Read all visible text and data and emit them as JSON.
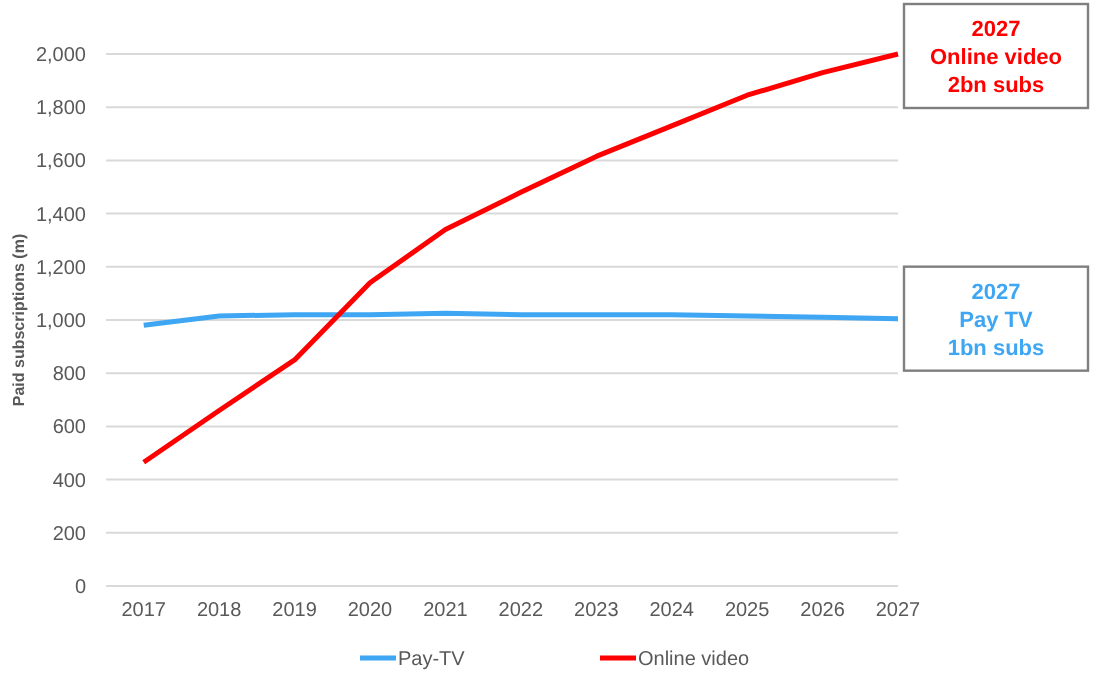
{
  "chart_data": {
    "type": "line",
    "ylabel": "Paid subscriptions (m)",
    "categories": [
      "2017",
      "2018",
      "2019",
      "2020",
      "2021",
      "2022",
      "2023",
      "2024",
      "2025",
      "2026",
      "2027"
    ],
    "series": [
      {
        "name": "Pay-TV",
        "color": "#3ea6f2",
        "values": [
          980,
          1015,
          1020,
          1020,
          1025,
          1020,
          1020,
          1020,
          1015,
          1010,
          1005
        ]
      },
      {
        "name": "Online video",
        "color": "#ff0000",
        "values": [
          465,
          660,
          850,
          1140,
          1340,
          1480,
          1615,
          1730,
          1845,
          1930,
          2000
        ]
      }
    ],
    "ylim": [
      0,
      2000
    ],
    "yticks": [
      {
        "value": 0,
        "label": "0"
      },
      {
        "value": 200,
        "label": "200"
      },
      {
        "value": 400,
        "label": "400"
      },
      {
        "value": 600,
        "label": "600"
      },
      {
        "value": 800,
        "label": "800"
      },
      {
        "value": 1000,
        "label": "1,000"
      },
      {
        "value": 1200,
        "label": "1,200"
      },
      {
        "value": 1400,
        "label": "1,400"
      },
      {
        "value": 1600,
        "label": "1,600"
      },
      {
        "value": 1800,
        "label": "1,800"
      },
      {
        "value": 2000,
        "label": "2,000"
      }
    ],
    "grid": "y",
    "legend": "bottom",
    "marker": "none",
    "line_style": "solid",
    "annotations": [
      {
        "text": "2027\nOnline video\n2bn subs",
        "x": "2027",
        "y": 2000
      },
      {
        "text": "2027\nPay TV\n1bn subs",
        "x": "2027",
        "y": 1005
      }
    ]
  }
}
